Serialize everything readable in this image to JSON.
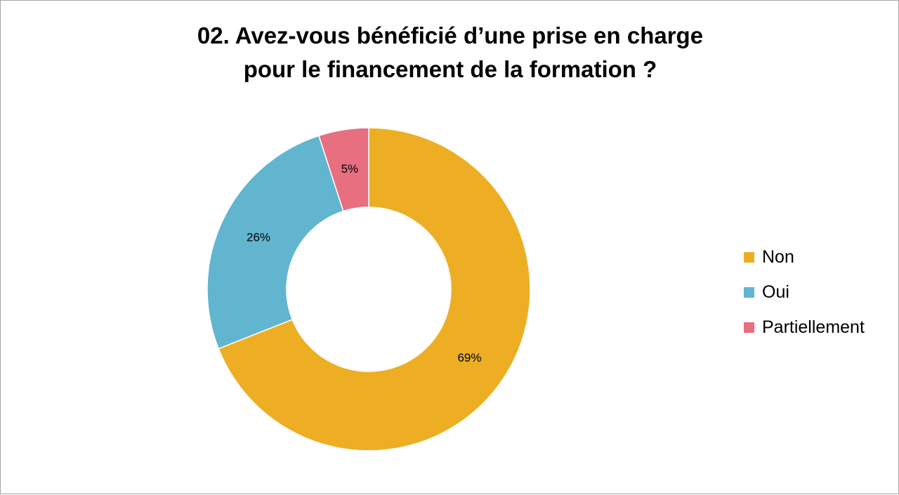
{
  "chart_data": {
    "type": "pie",
    "subtype": "donut",
    "title_lines": [
      "02. Avez-vous bénéficié d’une prise en charge",
      "pour le financement de la formation ?"
    ],
    "categories": [
      "Non",
      "Oui",
      "Partiellement"
    ],
    "values": [
      69,
      26,
      5
    ],
    "data_labels": [
      "69%",
      "26%",
      "5%"
    ],
    "colors": [
      "#EDAE24",
      "#62B5CF",
      "#E76F80"
    ],
    "legend_position": "right",
    "start_angle_deg": 0,
    "direction": "clockwise"
  }
}
